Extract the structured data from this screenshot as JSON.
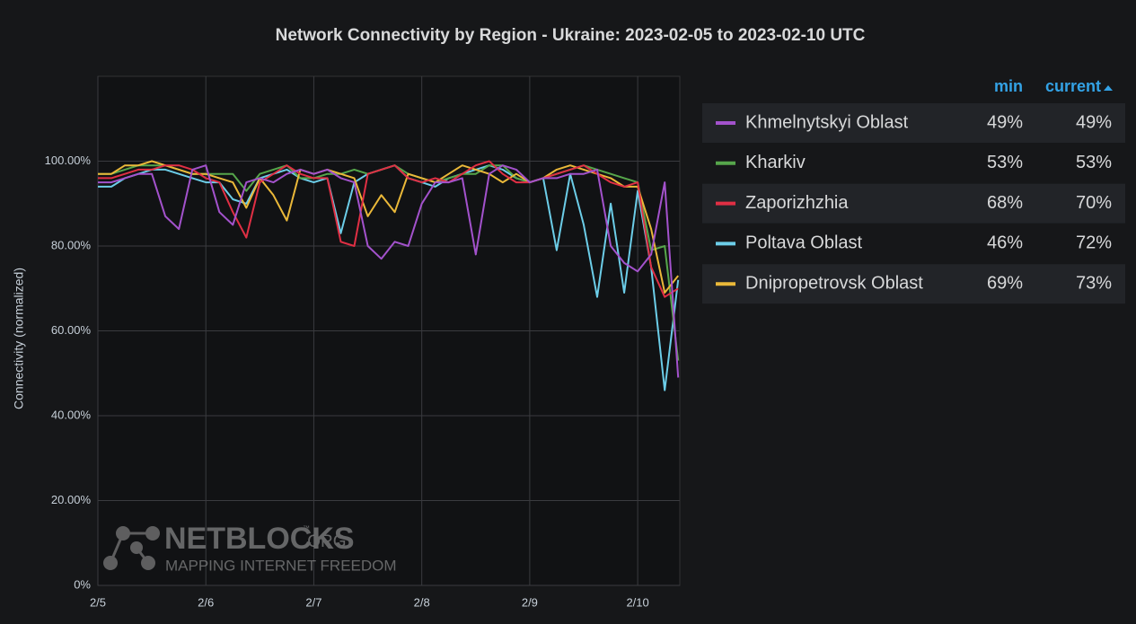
{
  "chart_data": {
    "type": "line",
    "title": "Network Connectivity by Region - Ukraine: 2023-02-05 to 2023-02-10 UTC",
    "y_label": "Connectivity (normalized)",
    "x": [
      0,
      0.125,
      0.25,
      0.375,
      0.5,
      0.625,
      0.75,
      0.875,
      1,
      1.125,
      1.25,
      1.375,
      1.5,
      1.625,
      1.75,
      1.875,
      2,
      2.125,
      2.25,
      2.375,
      2.5,
      2.625,
      2.75,
      2.875,
      3,
      3.125,
      3.25,
      3.375,
      3.5,
      3.625,
      3.75,
      3.875,
      4,
      4.125,
      4.25,
      4.375,
      4.5,
      4.625,
      4.75,
      4.875,
      5,
      5.125,
      5.25,
      5.375
    ],
    "xlim": [
      0,
      5.39
    ],
    "xticks": [
      {
        "value": 0,
        "label": "2/5"
      },
      {
        "value": 1,
        "label": "2/6"
      },
      {
        "value": 2,
        "label": "2/7"
      },
      {
        "value": 3,
        "label": "2/8"
      },
      {
        "value": 4,
        "label": "2/9"
      },
      {
        "value": 5,
        "label": "2/10"
      }
    ],
    "ylim": [
      0,
      120
    ],
    "yticks": [
      {
        "value": 0,
        "label": "0%"
      },
      {
        "value": 20,
        "label": "20.00%"
      },
      {
        "value": 40,
        "label": "40.00%"
      },
      {
        "value": 60,
        "label": "60.00%"
      },
      {
        "value": 80,
        "label": "80.00%"
      },
      {
        "value": 100,
        "label": "100.00%"
      }
    ],
    "grid": true,
    "legend_columns": [
      "min",
      "current"
    ],
    "watermark": {
      "brand": "NETBLOCKS",
      "mark": "™",
      "suffix": ".ORG",
      "tagline": "MAPPING INTERNET FREEDOM"
    },
    "series": [
      {
        "name": "Khmelnytskyi Oblast",
        "color": "#a352cc",
        "min": "49%",
        "current": "49%",
        "values": [
          95,
          95,
          96,
          97,
          97,
          87,
          84,
          98,
          99,
          88,
          85,
          95,
          96,
          95,
          97,
          98,
          97,
          98,
          96,
          95,
          80,
          77,
          81,
          80,
          90,
          95,
          95,
          96,
          78,
          97,
          99,
          98,
          95,
          96,
          96,
          97,
          97,
          98,
          80,
          76,
          74,
          78,
          95,
          49
        ]
      },
      {
        "name": "Kharkiv",
        "color": "#56a64b",
        "min": "53%",
        "current": "53%",
        "values": [
          97,
          97,
          98,
          99,
          99,
          99,
          98,
          97,
          97,
          97,
          97,
          93,
          97,
          98,
          99,
          96,
          96,
          97,
          97,
          98,
          97,
          98,
          99,
          97,
          96,
          95,
          96,
          97,
          97,
          99,
          99,
          96,
          95,
          96,
          97,
          98,
          99,
          98,
          97,
          96,
          95,
          79,
          80,
          53
        ]
      },
      {
        "name": "Zaporizhzhia",
        "color": "#e02f44",
        "min": "68%",
        "current": "70%",
        "values": [
          96,
          96,
          97,
          98,
          98,
          99,
          99,
          98,
          96,
          95,
          88,
          82,
          95,
          97,
          99,
          97,
          96,
          96,
          81,
          80,
          97,
          98,
          99,
          96,
          95,
          96,
          95,
          97,
          99,
          100,
          97,
          95,
          95,
          96,
          97,
          98,
          99,
          97,
          95,
          94,
          95,
          75,
          68,
          70
        ]
      },
      {
        "name": "Poltava Oblast",
        "color": "#6ccde8",
        "min": "46%",
        "current": "72%",
        "values": [
          94,
          94,
          96,
          97,
          98,
          98,
          97,
          96,
          95,
          95,
          91,
          90,
          96,
          97,
          98,
          96,
          95,
          96,
          83,
          95,
          97,
          98,
          99,
          96,
          95,
          94,
          96,
          97,
          98,
          99,
          98,
          96,
          95,
          96,
          79,
          97,
          85,
          68,
          90,
          69,
          93,
          75,
          46,
          72
        ]
      },
      {
        "name": "Dnipropetrovsk Oblast",
        "color": "#eab839",
        "min": "69%",
        "current": "73%",
        "values": [
          97,
          97,
          99,
          99,
          100,
          99,
          98,
          97,
          97,
          96,
          95,
          89,
          96,
          92,
          86,
          98,
          97,
          98,
          97,
          96,
          87,
          92,
          88,
          97,
          96,
          95,
          97,
          99,
          98,
          97,
          95,
          97,
          95,
          96,
          98,
          99,
          98,
          97,
          96,
          94,
          94,
          84,
          69,
          73
        ]
      }
    ]
  }
}
